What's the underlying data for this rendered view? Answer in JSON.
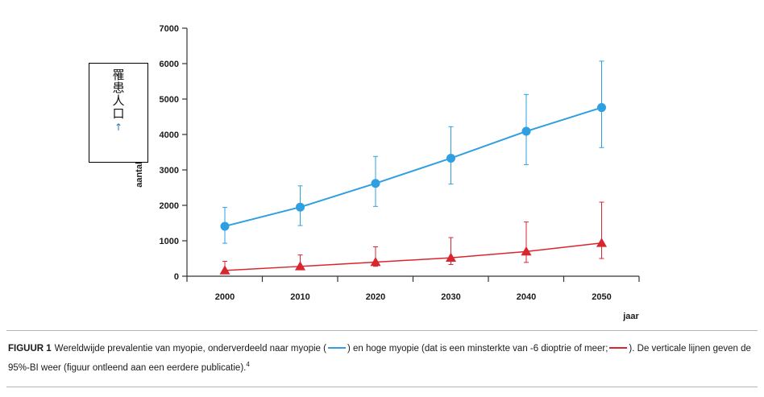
{
  "chart_data": {
    "type": "line",
    "x": [
      2000,
      2010,
      2020,
      2030,
      2040,
      2050
    ],
    "xlabel": "jaar",
    "ylabel": "aantal p",
    "ylim": [
      0,
      7000
    ],
    "yticks": [
      0,
      1000,
      2000,
      3000,
      4000,
      5000,
      6000,
      7000
    ],
    "grid": false,
    "series": [
      {
        "values": [
          1410,
          1950,
          2620,
          3330,
          4090,
          4760
        ],
        "ci_low": [
          930,
          1430,
          1970,
          2600,
          3150,
          3630
        ],
        "ci_high": [
          1940,
          2550,
          3380,
          4220,
          5130,
          6070
        ],
        "color": "#2e9fe0",
        "marker": "circle"
      },
      {
        "values": [
          163,
          277,
          399,
          519,
          696,
          937
        ],
        "ci_low": [
          80,
          200,
          280,
          330,
          390,
          500
        ],
        "ci_high": [
          420,
          600,
          830,
          1090,
          1530,
          2090
        ],
        "color": "#d9262e",
        "marker": "triangle"
      }
    ]
  },
  "overlay": {
    "chars": [
      "罹",
      "患",
      "人",
      "口"
    ],
    "arrow": "↑"
  },
  "caption": {
    "lead": "FIGUUR 1",
    "text_a": "Wereldwijde prevalentie van myopie, onderverdeeld naar myopie (",
    "text_b": ") en hoge myopie (dat is een minsterkte van -6 dioptrie of meer;",
    "text_c": "). De verticale lijnen geven de 95%-BI weer (figuur ontleend aan een eerdere publicatie).",
    "footnote": "4"
  },
  "colors": {
    "myopia": "#2e9fe0",
    "high_myopia": "#d9262e"
  }
}
